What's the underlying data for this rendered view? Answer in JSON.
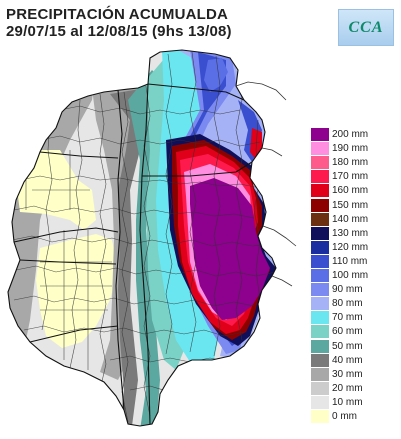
{
  "title": {
    "line1": "PRECIPITACIÓN ACUMUALDA",
    "line2": "29/07/15 al 12/08/15 (9hs 13/08)"
  },
  "logo": {
    "text": "CCA"
  },
  "legend": [
    {
      "label": "200 mm",
      "color": "#8e008e"
    },
    {
      "label": "190 mm",
      "color": "#ff8ee0"
    },
    {
      "label": "180 mm",
      "color": "#ff5a8c"
    },
    {
      "label": "170 mm",
      "color": "#ff1a4e"
    },
    {
      "label": "160 mm",
      "color": "#e0001a"
    },
    {
      "label": "150 mm",
      "color": "#8c0000"
    },
    {
      "label": "140 mm",
      "color": "#6a3010"
    },
    {
      "label": "130 mm",
      "color": "#10105a"
    },
    {
      "label": "120 mm",
      "color": "#1a2ea0"
    },
    {
      "label": "110 mm",
      "color": "#3a4ed0"
    },
    {
      "label": "100 mm",
      "color": "#5a6ee6"
    },
    {
      "label": "90 mm",
      "color": "#7a8af0"
    },
    {
      "label": "80 mm",
      "color": "#a6b2f6"
    },
    {
      "label": "70 mm",
      "color": "#6ae6f0"
    },
    {
      "label": "60 mm",
      "color": "#7ad2c6"
    },
    {
      "label": "50 mm",
      "color": "#5aa8a0"
    },
    {
      "label": "40 mm",
      "color": "#7a7a7a"
    },
    {
      "label": "30 mm",
      "color": "#a8a8a8"
    },
    {
      "label": "20 mm",
      "color": "#cccccc"
    },
    {
      "label": "10 mm",
      "color": "#e6e6e6"
    },
    {
      "label": "0 mm",
      "color": "#ffffc8"
    }
  ]
}
